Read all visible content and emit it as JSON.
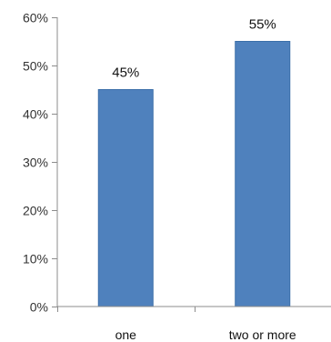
{
  "chart_data": {
    "type": "bar",
    "title": "",
    "xlabel": "",
    "ylabel": "",
    "categories": [
      "one",
      "two or more"
    ],
    "values": [
      0.45,
      0.55
    ],
    "data_labels": [
      "45%",
      "55%"
    ],
    "ylim": [
      0,
      0.6
    ],
    "yticks": [
      0,
      0.1,
      0.2,
      0.3,
      0.4,
      0.5,
      0.6
    ],
    "ytick_labels": [
      "0%",
      "10%",
      "20%",
      "30%",
      "40%",
      "50%",
      "60%"
    ],
    "grid": false,
    "legend": "none",
    "bar_color": "#4f81bd",
    "bar_edge_color": "#3a6ea8",
    "axis_color": "#8c8c8c"
  }
}
